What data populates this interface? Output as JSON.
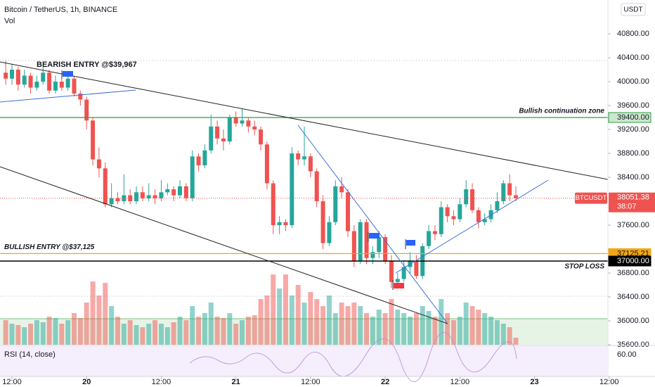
{
  "chart_data": {
    "type": "candlestick",
    "title": "Bitcoin / TetherUS, 1h, BINANCE",
    "volume_label": "Vol",
    "currency_button": "USDT",
    "symbol": "BTCUSDT",
    "countdown": "38:07",
    "up_color": "#26a69a",
    "down_color": "#ef5350",
    "xlim": [
      -1.92,
      95.8
    ],
    "xticks": [
      {
        "value": 0,
        "label": "12:00"
      },
      {
        "value": 12,
        "label": "20"
      },
      {
        "value": 24,
        "label": "12:00"
      },
      {
        "value": 36,
        "label": "21"
      },
      {
        "value": 48,
        "label": "12:00"
      },
      {
        "value": 60,
        "label": "22"
      },
      {
        "value": 72,
        "label": "12:00"
      },
      {
        "value": 84,
        "label": "23"
      },
      {
        "value": 96,
        "label": "12:00"
      }
    ],
    "ylim": [
      35600,
      41365
    ],
    "yticks": [
      {
        "value": 40800,
        "label": "40800.00"
      },
      {
        "value": 40400,
        "label": "40400.00"
      },
      {
        "value": 40000,
        "label": "40000.00"
      },
      {
        "value": 39600,
        "label": "39600.00"
      },
      {
        "value": 39200,
        "label": "39200.00"
      },
      {
        "value": 38800,
        "label": "38800.00"
      },
      {
        "value": 38400,
        "label": "38400.00"
      },
      {
        "value": 37600,
        "label": "37600.00"
      },
      {
        "value": 36800,
        "label": "36800.00"
      },
      {
        "value": 36400,
        "label": "36400.00"
      },
      {
        "value": 36000,
        "label": "36000.00"
      },
      {
        "value": 35600,
        "label": "35600.00"
      }
    ],
    "x": [
      -1,
      0,
      1,
      2,
      3,
      4,
      5,
      6,
      7,
      8,
      9,
      10,
      11,
      12,
      13,
      14,
      15,
      16,
      17,
      18,
      19,
      20,
      21,
      22,
      23,
      24,
      25,
      26,
      27,
      28,
      29,
      30,
      31,
      32,
      33,
      34,
      35,
      36,
      37,
      38,
      39,
      40,
      41,
      42,
      43,
      44,
      45,
      46,
      47,
      48,
      49,
      50,
      51,
      52,
      53,
      54,
      55,
      56,
      57,
      58,
      59,
      60,
      61,
      62,
      63,
      64,
      65,
      66,
      67,
      68,
      69,
      70,
      71,
      72,
      73,
      74,
      75,
      76,
      77,
      78,
      79,
      80,
      81
    ],
    "ohlc": [
      [
        40150,
        40350,
        39950,
        40050
      ],
      [
        40050,
        40300,
        39950,
        40200
      ],
      [
        40200,
        40250,
        39850,
        39950
      ],
      [
        39950,
        40200,
        39900,
        40100
      ],
      [
        40100,
        40150,
        39800,
        39900
      ],
      [
        39900,
        40100,
        39850,
        40000
      ],
      [
        40000,
        40250,
        39950,
        40150
      ],
      [
        40150,
        40200,
        39800,
        39850
      ],
      [
        39850,
        40100,
        39800,
        40000
      ],
      [
        40000,
        40050,
        39850,
        39900
      ],
      [
        39900,
        40150,
        39850,
        40050
      ],
      [
        40050,
        40100,
        39750,
        39800
      ],
      [
        39800,
        39850,
        39600,
        39700
      ],
      [
        39700,
        39750,
        39200,
        39350
      ],
      [
        39350,
        39400,
        38600,
        38700
      ],
      [
        38700,
        38900,
        38400,
        38550
      ],
      [
        38550,
        38650,
        37900,
        37950
      ],
      [
        37950,
        38300,
        37900,
        38050
      ],
      [
        38050,
        38150,
        37950,
        38000
      ],
      [
        38000,
        38450,
        37950,
        38100
      ],
      [
        38100,
        38200,
        37950,
        38000
      ],
      [
        38000,
        38250,
        37950,
        38150
      ],
      [
        38150,
        38250,
        38000,
        38050
      ],
      [
        38050,
        38300,
        38000,
        38100
      ],
      [
        38100,
        38200,
        37950,
        38050
      ],
      [
        38050,
        38350,
        38000,
        38150
      ],
      [
        38150,
        38300,
        38100,
        38200
      ],
      [
        38200,
        38250,
        38000,
        38100
      ],
      [
        38100,
        38350,
        38050,
        38250
      ],
      [
        38250,
        38300,
        38000,
        38050
      ],
      [
        38050,
        38850,
        38000,
        38750
      ],
      [
        38750,
        38800,
        38500,
        38600
      ],
      [
        38600,
        38950,
        38550,
        38850
      ],
      [
        38850,
        39450,
        38800,
        39250
      ],
      [
        39250,
        39350,
        38950,
        39050
      ],
      [
        39050,
        39200,
        38850,
        39000
      ],
      [
        39000,
        39450,
        38950,
        39400
      ],
      [
        39400,
        39500,
        39250,
        39300
      ],
      [
        39300,
        39550,
        39250,
        39350
      ],
      [
        39350,
        39400,
        39150,
        39250
      ],
      [
        39250,
        39350,
        39100,
        39200
      ],
      [
        39200,
        39250,
        38850,
        38950
      ],
      [
        38950,
        39000,
        38200,
        38300
      ],
      [
        38300,
        38350,
        37450,
        37600
      ],
      [
        37600,
        37750,
        37450,
        37650
      ],
      [
        37650,
        37700,
        37500,
        37600
      ],
      [
        37600,
        38900,
        37550,
        38800
      ],
      [
        38800,
        38850,
        38600,
        38700
      ],
      [
        38700,
        39250,
        38600,
        38750
      ],
      [
        38750,
        38800,
        38400,
        38500
      ],
      [
        38500,
        38550,
        37900,
        38000
      ],
      [
        38000,
        38100,
        37200,
        37300
      ],
      [
        37300,
        37750,
        37250,
        37650
      ],
      [
        37650,
        38350,
        37600,
        38250
      ],
      [
        38250,
        38400,
        38050,
        38150
      ],
      [
        38150,
        38200,
        37400,
        37500
      ],
      [
        37500,
        37600,
        36900,
        37000
      ],
      [
        37000,
        37700,
        36950,
        37650
      ],
      [
        37650,
        37700,
        36950,
        37050
      ],
      [
        37050,
        37250,
        36950,
        37150
      ],
      [
        37150,
        37500,
        37050,
        37400
      ],
      [
        37400,
        37450,
        36950,
        37000
      ],
      [
        37000,
        37100,
        36550,
        36650
      ],
      [
        36650,
        36800,
        36550,
        36700
      ],
      [
        36700,
        37000,
        36650,
        36900
      ],
      [
        36900,
        37150,
        36800,
        37000
      ],
      [
        37000,
        37100,
        36700,
        36750
      ],
      [
        36750,
        37300,
        36700,
        37250
      ],
      [
        37250,
        37600,
        37200,
        37500
      ],
      [
        37500,
        37600,
        37350,
        37450
      ],
      [
        37450,
        38000,
        37400,
        37900
      ],
      [
        37900,
        37950,
        37650,
        37750
      ],
      [
        37750,
        37850,
        37600,
        37700
      ],
      [
        37700,
        38050,
        37650,
        37950
      ],
      [
        37950,
        38350,
        37900,
        38200
      ],
      [
        38200,
        38300,
        37800,
        37850
      ],
      [
        37850,
        37900,
        37550,
        37650
      ],
      [
        37650,
        37800,
        37600,
        37700
      ],
      [
        37700,
        37950,
        37650,
        37850
      ],
      [
        37850,
        38150,
        37800,
        38000
      ],
      [
        38000,
        38350,
        37950,
        38300
      ],
      [
        38300,
        38450,
        38000,
        38100
      ],
      [
        38100,
        38250,
        38000,
        38051.38
      ]
    ],
    "volume": [
      35,
      30,
      28,
      25,
      30,
      35,
      32,
      40,
      38,
      30,
      35,
      45,
      38,
      60,
      90,
      70,
      88,
      55,
      40,
      30,
      35,
      28,
      25,
      30,
      35,
      30,
      25,
      32,
      40,
      35,
      55,
      40,
      45,
      60,
      40,
      38,
      45,
      30,
      35,
      40,
      42,
      65,
      70,
      100,
      80,
      100,
      70,
      85,
      60,
      75,
      65,
      55,
      70,
      45,
      60,
      55,
      60,
      55,
      45,
      40,
      50,
      45,
      65,
      50,
      45,
      40,
      45,
      55,
      48,
      40,
      65,
      45,
      35,
      40,
      60,
      55,
      50,
      45,
      40,
      35,
      30,
      25,
      10
    ],
    "levels": [
      {
        "value": 39400,
        "label": "39400.00",
        "text": "Bullish continuation zone",
        "color": "#2e9e3e"
      },
      {
        "value": 37125.21,
        "label": "37125.21",
        "text": "BULLISH ENTRY @$37,125",
        "color": "#f2a516"
      },
      {
        "value": 37000,
        "label": "37000.00",
        "text": "STOP LOSS",
        "color": "#000000"
      }
    ],
    "bearish_entry": "BEARISH ENTRY @$39,967",
    "rsi_label": "RSI (14, close)",
    "rsi_yticks": [
      {
        "value": 60,
        "label": "60.00"
      }
    ]
  }
}
